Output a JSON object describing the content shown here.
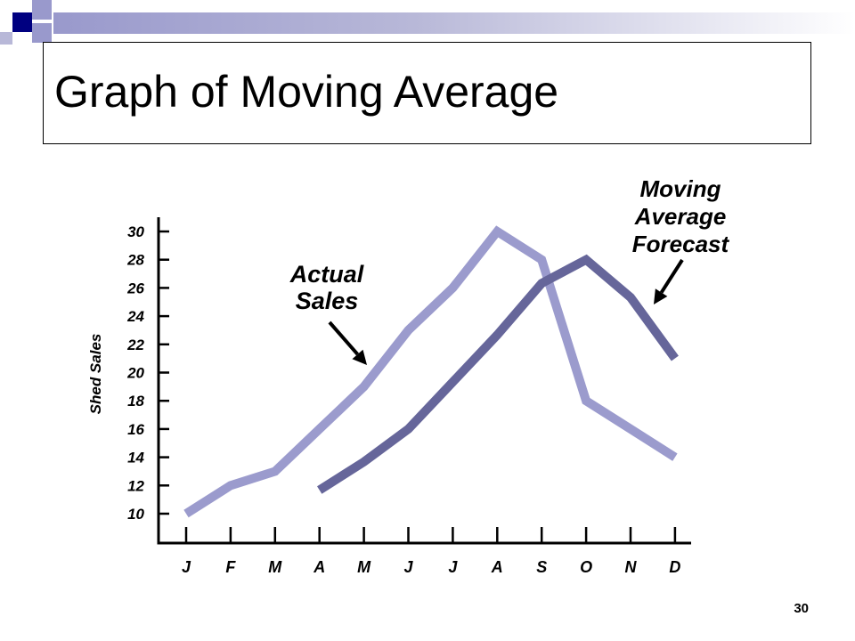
{
  "slide": {
    "title": "Graph of Moving Average",
    "page_number": "30"
  },
  "colors": {
    "actual": "#9b9bcd",
    "forecast": "#66669a",
    "deco_dark": "#000080",
    "deco_light": "#9999cc"
  },
  "chart_data": {
    "type": "line",
    "ylabel": "Shed Sales",
    "xlabel": "",
    "categories": [
      "J",
      "F",
      "M",
      "A",
      "M",
      "J",
      "J",
      "A",
      "S",
      "O",
      "N",
      "D"
    ],
    "yticks": [
      "10",
      "12",
      "14",
      "16",
      "18",
      "20",
      "22",
      "24",
      "26",
      "28",
      "30"
    ],
    "ylim": [
      10,
      30
    ],
    "grid": false,
    "legend": "none",
    "series": [
      {
        "key": "actual",
        "values": [
          10,
          12,
          13,
          16,
          19,
          23,
          26,
          30,
          28,
          18,
          16,
          14
        ]
      },
      {
        "key": "forecast",
        "values": [
          null,
          null,
          null,
          11.67,
          13.67,
          16.0,
          19.33,
          22.67,
          26.33,
          28.0,
          25.33,
          21.0
        ]
      }
    ],
    "annotations": [
      {
        "target": "actual",
        "lines": [
          "Actual",
          "Sales"
        ]
      },
      {
        "target": "forecast",
        "lines": [
          "Moving",
          "Average",
          "Forecast"
        ]
      }
    ]
  }
}
